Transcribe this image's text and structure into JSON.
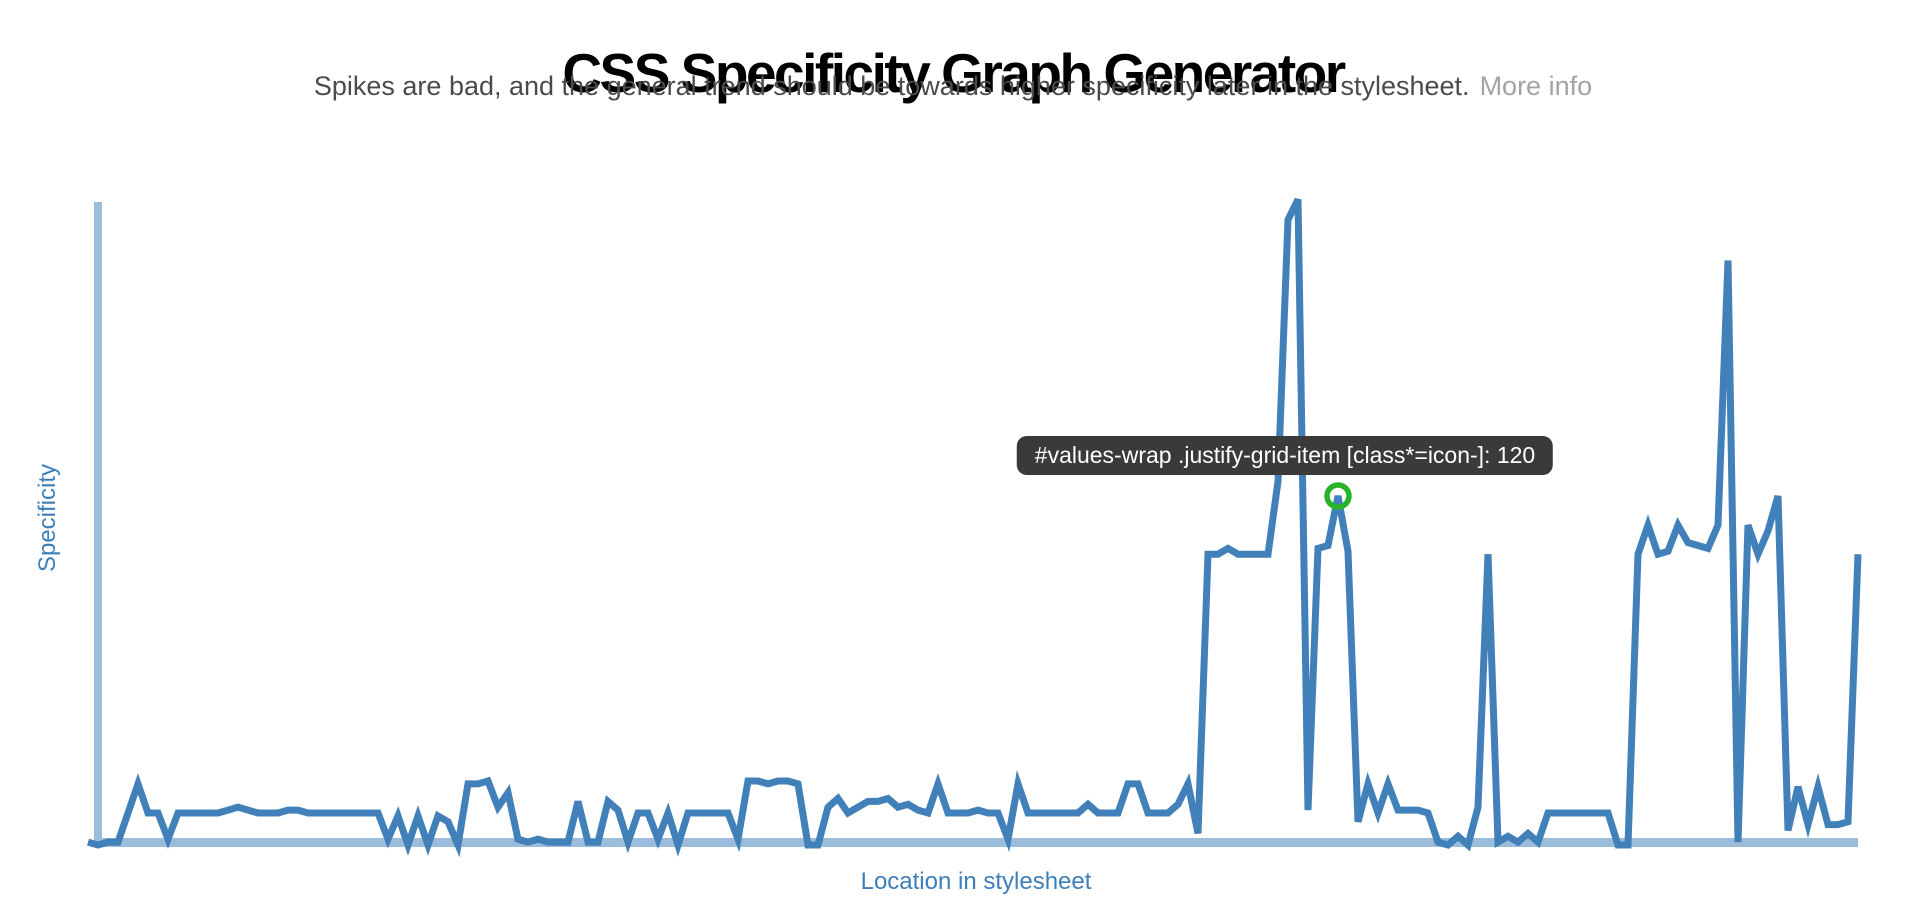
{
  "header": {
    "title": "CSS Specificity Graph Generator",
    "subtitle": "Spikes are bad, and the general trend should be towards higher specificity later in the stylesheet.",
    "more_info_label": "More info"
  },
  "chart": {
    "y_axis_label": "Specificity",
    "x_axis_label": "Location in stylesheet",
    "tooltip_text": "#values-wrap .justify-grid-item [class*=icon-]: 120",
    "colors": {
      "line": "#4180b8",
      "axis": "#9cbcdc",
      "axis_label_text": "#3e7eba",
      "title_text": "#000000",
      "subtitle_text": "#4b4b4b",
      "more_info_text": "#a3a3a3",
      "tooltip_bg": "#3a3a3a",
      "tooltip_text": "#ffffff",
      "marker_ring": "#27b427"
    }
  },
  "chart_data": {
    "type": "line",
    "title": "CSS Specificity Graph Generator",
    "xlabel": "Location in stylesheet",
    "ylabel": "Specificity",
    "x_description": "Selector position in stylesheet, evenly spaced points left to right",
    "y_description": "Computed selector specificity (ids=100, classes=10, elements=1), estimated from pixel positions",
    "ylim": [
      0,
      230
    ],
    "grid": false,
    "legend": false,
    "values": [
      1,
      0,
      1,
      1,
      11,
      21,
      11,
      11,
      2,
      11,
      11,
      11,
      11,
      11,
      12,
      13,
      12,
      11,
      11,
      11,
      12,
      12,
      11,
      11,
      11,
      11,
      11,
      11,
      11,
      11,
      2,
      10,
      0,
      10,
      0,
      10,
      8,
      0,
      21,
      21,
      22,
      13,
      18,
      2,
      1,
      2,
      1,
      1,
      1,
      15,
      1,
      1,
      15,
      12,
      1,
      11,
      11,
      2,
      11,
      0,
      11,
      11,
      11,
      11,
      11,
      2,
      22,
      22,
      21,
      22,
      22,
      21,
      0,
      0,
      13,
      16,
      11,
      13,
      15,
      15,
      16,
      13,
      14,
      12,
      11,
      21,
      11,
      11,
      11,
      12,
      11,
      11,
      2,
      21,
      11,
      11,
      11,
      11,
      11,
      11,
      14,
      11,
      11,
      11,
      21,
      21,
      11,
      11,
      11,
      14,
      21,
      4,
      100,
      100,
      102,
      100,
      100,
      100,
      100,
      125,
      215,
      222,
      12,
      102,
      103,
      120,
      101,
      8,
      21,
      11,
      21,
      12,
      12,
      12,
      11,
      1,
      0,
      3,
      0,
      13,
      100,
      1,
      3,
      1,
      4,
      1,
      11,
      11,
      11,
      11,
      11,
      11,
      11,
      0,
      0,
      100,
      110,
      100,
      101,
      110,
      104,
      103,
      102,
      110,
      201,
      1,
      110,
      100,
      108,
      120,
      5,
      20,
      7,
      20,
      7,
      7,
      8,
      100
    ],
    "highlight": {
      "index": 125,
      "value": 120,
      "selector_label": "#values-wrap .justify-grid-item [class*=icon-]: 120"
    }
  }
}
